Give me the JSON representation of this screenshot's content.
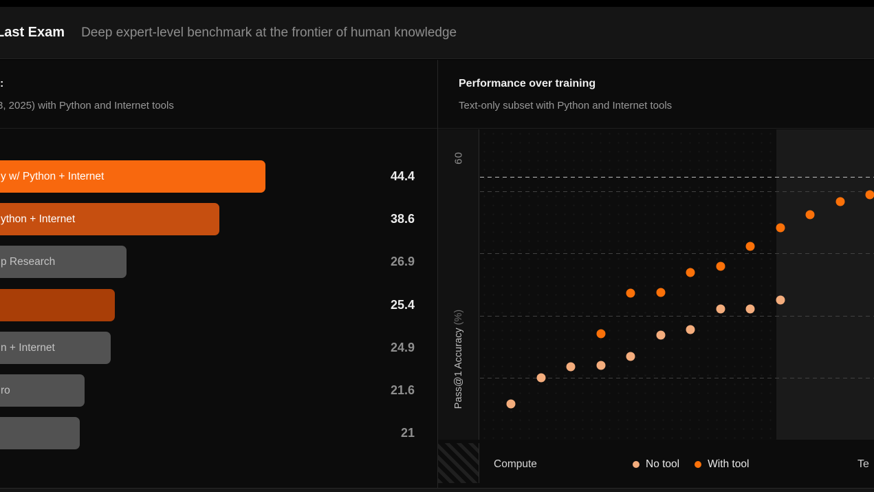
{
  "header": {
    "title": "Last Exam",
    "tagline": "Deep expert-level benchmark at the frontier of human knowledge"
  },
  "left_panel": {
    "title": ":",
    "subtitle": "3, 2025) with Python and Internet tools"
  },
  "right_panel": {
    "title": "Performance over training",
    "subtitle": "Text-only subset with Python and Internet tools"
  },
  "colors": {
    "accent_bright_orange": "#f8680e",
    "accent_mid_orange": "#c64f10",
    "accent_dark_orange": "#a93e07",
    "bar_gray": "#525252",
    "no_tool_dot": "#f4ad7d",
    "with_tool_dot": "#fb7109",
    "value_highlight": "#ededed",
    "value_muted": "#8f8f8f"
  },
  "chart_data": [
    {
      "type": "bar",
      "orientation": "horizontal",
      "title": ":",
      "subtitle": "3, 2025) with Python and Internet tools",
      "note": "bars are cut off at the left edge of the viewport; values shown at right",
      "bars": [
        {
          "label": "y w/ Python + Internet",
          "value": 44.4,
          "color": "#f8680e",
          "label_color": "#ffffff",
          "value_color": "#ededed"
        },
        {
          "label": "ython + Internet",
          "value": 38.6,
          "color": "#c64f10",
          "label_color": "#ffffff",
          "value_color": "#ededed"
        },
        {
          "label": "p Research",
          "value": 26.9,
          "color": "#525252",
          "label_color": "#c4c4c4",
          "value_color": "#8f8f8f"
        },
        {
          "label": "",
          "value": 25.4,
          "color": "#a93e07",
          "label_color": "#ffffff",
          "value_color": "#ededed"
        },
        {
          "label": "n + Internet",
          "value": 24.9,
          "color": "#525252",
          "label_color": "#c4c4c4",
          "value_color": "#8f8f8f"
        },
        {
          "label": "ro",
          "value": 21.6,
          "color": "#525252",
          "label_color": "#c4c4c4",
          "value_color": "#8f8f8f"
        },
        {
          "label": "",
          "value": 21,
          "color": "#525252",
          "label_color": "#c4c4c4",
          "value_color": "#8f8f8f"
        }
      ]
    },
    {
      "type": "scatter",
      "title": "Performance over training",
      "subtitle": "Text-only subset with Python and Internet tools",
      "ylabel": "Pass@1 Accuracy",
      "ylabel_unit": "(%)",
      "xlabel": "Compute",
      "ylim": [
        10,
        60
      ],
      "visible_ytick": "60",
      "gridlines": [
        20,
        30,
        40,
        50
      ],
      "reference_line": 52.4,
      "grid_style": "dashed",
      "x_slots": 13,
      "shaded_region_from_x_fraction": 0.752,
      "right_edge_label_partial": "Te",
      "legend": [
        {
          "name": "No tool",
          "color": "#f4ad7d"
        },
        {
          "name": "With tool",
          "color": "#fb7109"
        }
      ],
      "series": [
        {
          "name": "No tool",
          "color": "#f4ad7d",
          "start_slot": 0,
          "values": [
            15.8,
            20.0,
            21.7,
            22.0,
            23.4,
            26.8,
            27.7,
            31.1,
            31.1,
            32.5
          ]
        },
        {
          "name": "With tool",
          "color": "#fb7109",
          "start_slot": 3,
          "values": [
            27.1,
            33.6,
            33.7,
            36.9,
            37.9,
            41.1,
            44.2,
            46.3,
            48.4,
            49.5
          ]
        }
      ]
    }
  ]
}
